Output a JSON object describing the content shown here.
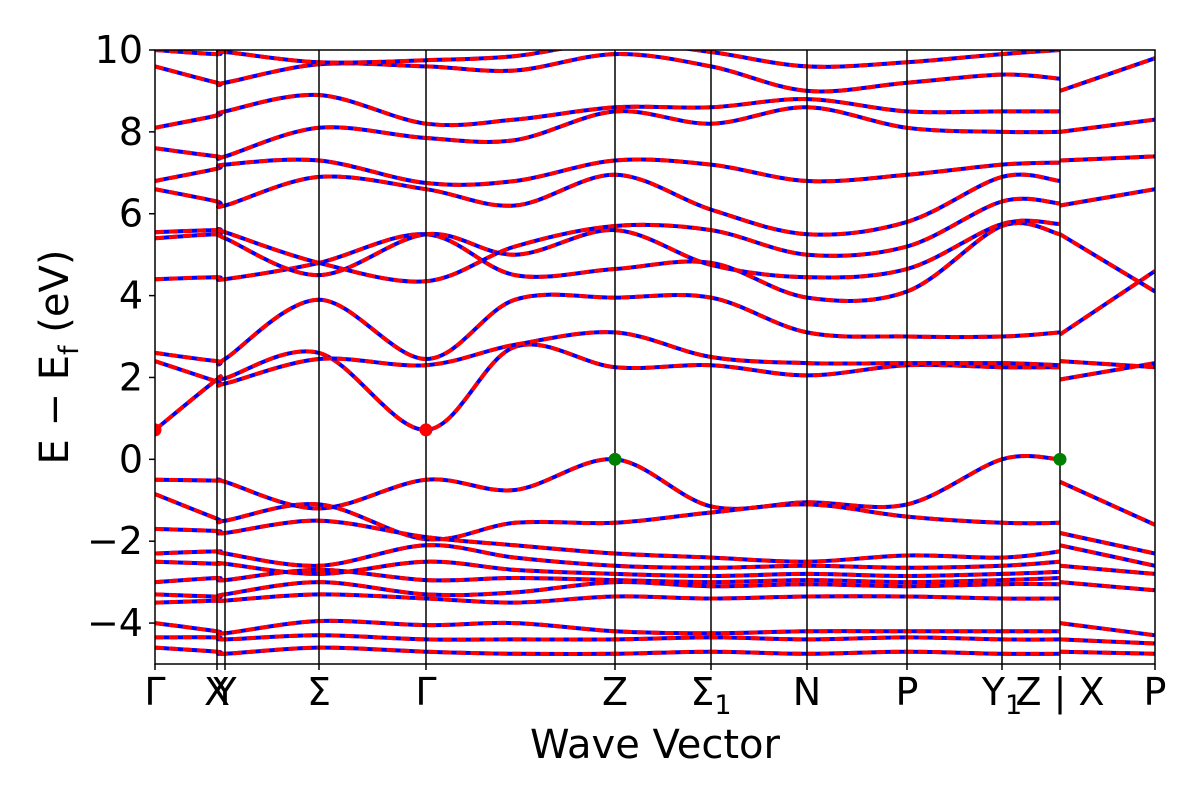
{
  "chart_data": {
    "type": "line",
    "title": "",
    "xlabel": "Wave Vector",
    "ylabel": "E − E_f (eV)",
    "ylabel_parts": {
      "main": "E − E",
      "subscript": "f",
      "tail": " (eV)"
    },
    "ylim": [
      -5,
      10
    ],
    "yticks": [
      -4,
      -2,
      0,
      2,
      4,
      6,
      8,
      10
    ],
    "ytick_labels": [
      "−4",
      "−2",
      "0",
      "2",
      "4",
      "6",
      "8",
      "10"
    ],
    "xlim": [
      0,
      10
    ],
    "high_symmetry_points": [
      {
        "label": "Γ",
        "x": 0.0
      },
      {
        "label": "X",
        "x": 0.62
      },
      {
        "label": "Y",
        "x": 0.7
      },
      {
        "label": "Σ",
        "x": 1.64
      },
      {
        "label": "Γ",
        "x": 2.71
      },
      {
        "label": "Z",
        "x": 4.6
      },
      {
        "label": "Σ",
        "sub": "1",
        "x": 5.56
      },
      {
        "label": "N",
        "x": 6.52
      },
      {
        "label": "P",
        "x": 7.52
      },
      {
        "label": "Y",
        "sub": "1",
        "x": 8.47
      },
      {
        "label": "Z | X",
        "x": 9.05
      },
      {
        "label": "P",
        "x": 10.0
      }
    ],
    "series": [
      {
        "style": "red solid + blue dashed (overlaid band calculations)",
        "color_primary": "#ff0000",
        "color_secondary": "#0000ff"
      }
    ],
    "bands": {
      "cb1": [
        [
          0,
          0.72
        ],
        [
          0.62,
          1.95
        ],
        [
          0.7,
          1.98
        ],
        [
          1.64,
          2.6
        ],
        [
          2.71,
          0.72
        ],
        [
          3.6,
          2.75
        ],
        [
          4.6,
          2.25
        ],
        [
          5.56,
          2.3
        ],
        [
          6.52,
          2.05
        ],
        [
          7.52,
          2.3
        ],
        [
          8.47,
          2.25
        ],
        [
          9.05,
          2.25
        ]
      ],
      "cb2": [
        [
          0,
          2.4
        ],
        [
          0.62,
          1.9
        ],
        [
          0.7,
          1.85
        ],
        [
          1.64,
          2.45
        ],
        [
          2.71,
          2.3
        ],
        [
          3.6,
          2.8
        ],
        [
          4.6,
          3.1
        ],
        [
          5.56,
          2.5
        ],
        [
          6.52,
          2.35
        ],
        [
          7.52,
          2.35
        ],
        [
          8.47,
          2.35
        ],
        [
          9.05,
          2.3
        ]
      ],
      "cb3": [
        [
          0,
          2.6
        ],
        [
          0.62,
          2.4
        ],
        [
          0.7,
          2.45
        ],
        [
          1.64,
          3.9
        ],
        [
          2.71,
          2.45
        ],
        [
          3.6,
          3.9
        ],
        [
          4.6,
          3.95
        ],
        [
          5.56,
          3.95
        ],
        [
          6.52,
          3.1
        ],
        [
          7.52,
          3.0
        ],
        [
          8.47,
          3.0
        ],
        [
          9.05,
          3.1
        ]
      ],
      "vb1": [
        [
          0,
          -0.5
        ],
        [
          0.62,
          -0.52
        ],
        [
          0.7,
          -0.55
        ],
        [
          1.64,
          -1.2
        ],
        [
          2.71,
          -0.5
        ],
        [
          3.6,
          -0.75
        ],
        [
          4.6,
          0.0
        ],
        [
          5.56,
          -1.15
        ],
        [
          6.52,
          -1.05
        ],
        [
          7.52,
          -1.1
        ],
        [
          8.47,
          0.0
        ],
        [
          9.05,
          0.0
        ]
      ],
      "vb2": [
        [
          0,
          -0.85
        ],
        [
          0.62,
          -1.45
        ],
        [
          0.7,
          -1.5
        ],
        [
          1.64,
          -1.1
        ],
        [
          2.71,
          -1.95
        ],
        [
          3.6,
          -1.55
        ],
        [
          4.6,
          -1.55
        ],
        [
          5.56,
          -1.3
        ],
        [
          6.52,
          -1.1
        ],
        [
          7.52,
          -1.4
        ],
        [
          8.47,
          -1.55
        ],
        [
          9.05,
          -1.55
        ]
      ],
      "vb_deep1": [
        [
          0,
          -4.0
        ],
        [
          0.62,
          -4.2
        ],
        [
          0.7,
          -4.25
        ],
        [
          1.64,
          -3.95
        ],
        [
          2.71,
          -4.05
        ],
        [
          3.6,
          -4.0
        ],
        [
          4.6,
          -4.2
        ],
        [
          5.56,
          -4.25
        ],
        [
          6.52,
          -4.2
        ],
        [
          7.52,
          -4.2
        ],
        [
          8.47,
          -4.2
        ],
        [
          9.05,
          -4.2
        ]
      ],
      "vb_deep2": [
        [
          0,
          -4.35
        ],
        [
          0.62,
          -4.35
        ],
        [
          0.7,
          -4.4
        ],
        [
          1.64,
          -4.3
        ],
        [
          2.71,
          -4.4
        ],
        [
          3.6,
          -4.4
        ],
        [
          4.6,
          -4.4
        ],
        [
          5.56,
          -4.35
        ],
        [
          6.52,
          -4.4
        ],
        [
          7.52,
          -4.35
        ],
        [
          8.47,
          -4.4
        ],
        [
          9.05,
          -4.4
        ]
      ],
      "vb_deep3": [
        [
          0,
          -4.6
        ],
        [
          0.62,
          -4.7
        ],
        [
          0.7,
          -4.75
        ],
        [
          1.64,
          -4.6
        ],
        [
          2.71,
          -4.7
        ],
        [
          3.6,
          -4.75
        ],
        [
          4.6,
          -4.75
        ],
        [
          5.56,
          -4.7
        ],
        [
          6.52,
          -4.75
        ],
        [
          7.52,
          -4.7
        ],
        [
          8.47,
          -4.75
        ],
        [
          9.05,
          -4.75
        ]
      ],
      "cb_mid1": [
        [
          0,
          4.4
        ],
        [
          0.62,
          4.45
        ],
        [
          0.7,
          4.4
        ],
        [
          1.64,
          4.8
        ],
        [
          2.71,
          5.5
        ],
        [
          3.6,
          4.5
        ],
        [
          4.6,
          4.65
        ],
        [
          5.56,
          4.8
        ],
        [
          6.52,
          3.95
        ],
        [
          7.52,
          4.1
        ],
        [
          8.47,
          5.7
        ],
        [
          9.05,
          5.5
        ]
      ],
      "cb_mid2": [
        [
          0,
          5.4
        ],
        [
          0.62,
          5.5
        ],
        [
          0.7,
          5.4
        ],
        [
          1.64,
          4.5
        ],
        [
          2.71,
          5.5
        ],
        [
          3.6,
          5.0
        ],
        [
          4.6,
          5.6
        ],
        [
          5.56,
          4.75
        ],
        [
          6.52,
          4.45
        ],
        [
          7.52,
          4.65
        ],
        [
          8.47,
          5.75
        ],
        [
          9.05,
          5.75
        ]
      ],
      "cb_mid3": [
        [
          0,
          5.55
        ],
        [
          0.62,
          5.6
        ],
        [
          0.7,
          5.55
        ],
        [
          1.64,
          4.8
        ],
        [
          2.71,
          4.35
        ],
        [
          3.6,
          5.2
        ],
        [
          4.6,
          5.7
        ],
        [
          5.56,
          5.6
        ],
        [
          6.52,
          5.0
        ],
        [
          7.52,
          5.2
        ],
        [
          8.47,
          6.3
        ],
        [
          9.05,
          6.25
        ]
      ],
      "cb_high1": [
        [
          0,
          6.6
        ],
        [
          0.62,
          6.3
        ],
        [
          0.7,
          6.2
        ],
        [
          1.64,
          6.9
        ],
        [
          2.71,
          6.6
        ],
        [
          3.6,
          6.2
        ],
        [
          4.6,
          6.95
        ],
        [
          5.56,
          6.1
        ],
        [
          6.52,
          5.5
        ],
        [
          7.52,
          5.8
        ],
        [
          8.47,
          6.9
        ],
        [
          9.05,
          6.8
        ]
      ],
      "cb_high2": [
        [
          0,
          6.8
        ],
        [
          0.62,
          7.1
        ],
        [
          0.7,
          7.2
        ],
        [
          1.64,
          7.3
        ],
        [
          2.71,
          6.75
        ],
        [
          3.6,
          6.8
        ],
        [
          4.6,
          7.3
        ],
        [
          5.56,
          7.2
        ],
        [
          6.52,
          6.8
        ],
        [
          7.52,
          6.95
        ],
        [
          8.47,
          7.2
        ],
        [
          9.05,
          7.25
        ]
      ],
      "cb_high3": [
        [
          0,
          7.6
        ],
        [
          0.62,
          7.4
        ],
        [
          0.7,
          7.4
        ],
        [
          1.64,
          8.1
        ],
        [
          2.71,
          7.85
        ],
        [
          3.6,
          7.8
        ],
        [
          4.6,
          8.5
        ],
        [
          5.56,
          8.2
        ],
        [
          6.52,
          8.6
        ],
        [
          7.52,
          8.1
        ],
        [
          8.47,
          8.0
        ],
        [
          9.05,
          8.0
        ]
      ],
      "cb_high4": [
        [
          0,
          8.1
        ],
        [
          0.62,
          8.4
        ],
        [
          0.7,
          8.5
        ],
        [
          1.64,
          8.9
        ],
        [
          2.71,
          8.2
        ],
        [
          3.6,
          8.3
        ],
        [
          4.6,
          8.6
        ],
        [
          5.56,
          8.6
        ],
        [
          6.52,
          8.8
        ],
        [
          7.52,
          8.5
        ],
        [
          8.47,
          8.5
        ],
        [
          9.05,
          8.5
        ]
      ],
      "cb_high5": [
        [
          0,
          9.6
        ],
        [
          0.62,
          9.2
        ],
        [
          0.7,
          9.2
        ],
        [
          1.64,
          9.65
        ],
        [
          2.71,
          9.6
        ],
        [
          3.6,
          9.5
        ],
        [
          4.6,
          9.9
        ],
        [
          5.56,
          9.6
        ],
        [
          6.52,
          9.0
        ],
        [
          7.52,
          9.2
        ],
        [
          8.47,
          9.4
        ],
        [
          9.05,
          9.3
        ]
      ],
      "cb_high6": [
        [
          0,
          10.0
        ],
        [
          0.62,
          9.9
        ],
        [
          0.7,
          9.95
        ],
        [
          1.64,
          9.7
        ],
        [
          2.71,
          9.75
        ],
        [
          3.6,
          9.85
        ],
        [
          4.6,
          10.2
        ],
        [
          5.56,
          9.95
        ],
        [
          6.52,
          9.6
        ],
        [
          7.52,
          9.7
        ],
        [
          8.47,
          9.9
        ],
        [
          9.05,
          10.0
        ]
      ],
      "vb_cluster1": [
        [
          0,
          -1.7
        ],
        [
          0.62,
          -1.75
        ],
        [
          0.7,
          -1.8
        ],
        [
          1.64,
          -1.5
        ],
        [
          2.71,
          -1.9
        ],
        [
          3.6,
          -2.1
        ],
        [
          4.6,
          -2.3
        ],
        [
          5.56,
          -2.4
        ],
        [
          6.52,
          -2.5
        ],
        [
          7.52,
          -2.35
        ],
        [
          8.47,
          -2.4
        ],
        [
          9.05,
          -2.25
        ]
      ],
      "vb_cluster2": [
        [
          0,
          -2.3
        ],
        [
          0.62,
          -2.25
        ],
        [
          0.7,
          -2.3
        ],
        [
          1.64,
          -2.6
        ],
        [
          2.71,
          -2.1
        ],
        [
          3.6,
          -2.4
        ],
        [
          4.6,
          -2.6
        ],
        [
          5.56,
          -2.65
        ],
        [
          6.52,
          -2.6
        ],
        [
          7.52,
          -2.65
        ],
        [
          8.47,
          -2.6
        ],
        [
          9.05,
          -2.5
        ]
      ],
      "vb_cluster3": [
        [
          0,
          -2.5
        ],
        [
          0.62,
          -2.55
        ],
        [
          0.7,
          -2.55
        ],
        [
          1.64,
          -2.8
        ],
        [
          2.71,
          -2.5
        ],
        [
          3.6,
          -2.7
        ],
        [
          4.6,
          -2.8
        ],
        [
          5.56,
          -2.85
        ],
        [
          6.52,
          -2.8
        ],
        [
          7.52,
          -2.85
        ],
        [
          8.47,
          -2.8
        ],
        [
          9.05,
          -2.75
        ]
      ],
      "vb_cluster4": [
        [
          0,
          -3.0
        ],
        [
          0.62,
          -2.9
        ],
        [
          0.7,
          -2.95
        ],
        [
          1.64,
          -2.7
        ],
        [
          2.71,
          -2.95
        ],
        [
          3.6,
          -2.9
        ],
        [
          4.6,
          -2.95
        ],
        [
          5.56,
          -3.0
        ],
        [
          6.52,
          -2.95
        ],
        [
          7.52,
          -3.0
        ],
        [
          8.47,
          -2.95
        ],
        [
          9.05,
          -2.9
        ]
      ],
      "vb_cluster5": [
        [
          0,
          -3.3
        ],
        [
          0.62,
          -3.35
        ],
        [
          0.7,
          -3.3
        ],
        [
          1.64,
          -3.0
        ],
        [
          2.71,
          -3.3
        ],
        [
          3.6,
          -3.25
        ],
        [
          4.6,
          -3.0
        ],
        [
          5.56,
          -3.1
        ],
        [
          6.52,
          -3.05
        ],
        [
          7.52,
          -3.1
        ],
        [
          8.47,
          -3.05
        ],
        [
          9.05,
          -3.05
        ]
      ],
      "vb_cluster6": [
        [
          0,
          -3.5
        ],
        [
          0.62,
          -3.45
        ],
        [
          0.7,
          -3.45
        ],
        [
          1.64,
          -3.3
        ],
        [
          2.71,
          -3.4
        ],
        [
          3.6,
          -3.5
        ],
        [
          4.6,
          -3.35
        ],
        [
          5.56,
          -3.4
        ],
        [
          6.52,
          -3.35
        ],
        [
          7.52,
          -3.35
        ],
        [
          8.47,
          -3.4
        ],
        [
          9.05,
          -3.4
        ]
      ]
    },
    "bands_right_segment": {
      "cb1": [
        [
          9.05,
          1.95
        ],
        [
          10.0,
          2.35
        ]
      ],
      "cb2": [
        [
          9.05,
          2.4
        ],
        [
          10.0,
          2.25
        ]
      ],
      "cb3": [
        [
          9.05,
          3.05
        ],
        [
          10.0,
          4.6
        ]
      ],
      "cb4": [
        [
          9.05,
          5.5
        ],
        [
          10.0,
          4.1
        ]
      ],
      "cb5": [
        [
          9.05,
          6.2
        ],
        [
          10.0,
          6.6
        ]
      ],
      "cb6": [
        [
          9.05,
          7.3
        ],
        [
          10.0,
          7.4
        ]
      ],
      "cb7": [
        [
          9.05,
          8.0
        ],
        [
          10.0,
          8.3
        ]
      ],
      "cb8": [
        [
          9.05,
          9.0
        ],
        [
          10.0,
          9.8
        ]
      ],
      "vb1": [
        [
          9.05,
          -0.55
        ],
        [
          10.0,
          -1.6
        ]
      ],
      "vb2": [
        [
          9.05,
          -1.8
        ],
        [
          10.0,
          -2.3
        ]
      ],
      "vb3": [
        [
          9.05,
          -2.1
        ],
        [
          10.0,
          -2.6
        ]
      ],
      "vb4": [
        [
          9.05,
          -2.6
        ],
        [
          10.0,
          -2.8
        ]
      ],
      "vb5": [
        [
          9.05,
          -3.0
        ],
        [
          10.0,
          -3.2
        ]
      ],
      "vb6": [
        [
          9.05,
          -4.0
        ],
        [
          10.0,
          -4.3
        ]
      ],
      "vb7": [
        [
          9.05,
          -4.4
        ],
        [
          10.0,
          -4.5
        ]
      ],
      "vb8": [
        [
          9.05,
          -4.7
        ],
        [
          10.0,
          -4.75
        ]
      ]
    },
    "markers": [
      {
        "x": 0.0,
        "y": 0.72,
        "color": "#ff0000"
      },
      {
        "x": 2.71,
        "y": 0.72,
        "color": "#ff0000"
      },
      {
        "x": 4.6,
        "y": 0.0,
        "color": "#008000"
      },
      {
        "x": 9.05,
        "y": 0.0,
        "color": "#008000"
      }
    ],
    "grid": false,
    "legend": "none"
  }
}
